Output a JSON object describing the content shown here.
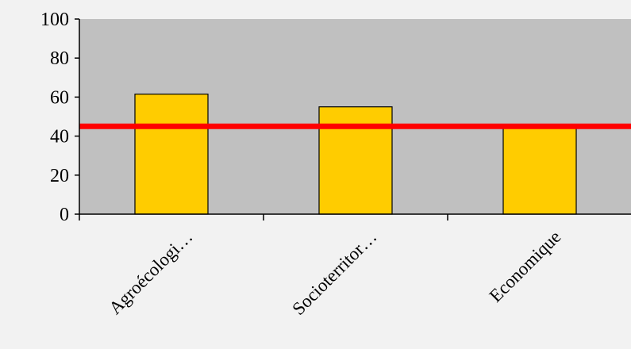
{
  "chart_data": {
    "type": "bar",
    "categories": [
      "Agroécologi…",
      "Socioterritor…",
      "Economique"
    ],
    "values": [
      61.5,
      55,
      44
    ],
    "threshold": 45,
    "title": "",
    "xlabel": "",
    "ylabel": "",
    "ylim": [
      0,
      100
    ],
    "yticks": [
      "0",
      "20",
      "40",
      "60",
      "80",
      "100"
    ],
    "grid": false,
    "legend": "none",
    "colors": {
      "plot_background": "#c0c0c0",
      "page_background": "#f2f2f2",
      "bar_fill": "#ffcc00",
      "bar_stroke": "#000000",
      "threshold_line": "#ff0000"
    }
  }
}
